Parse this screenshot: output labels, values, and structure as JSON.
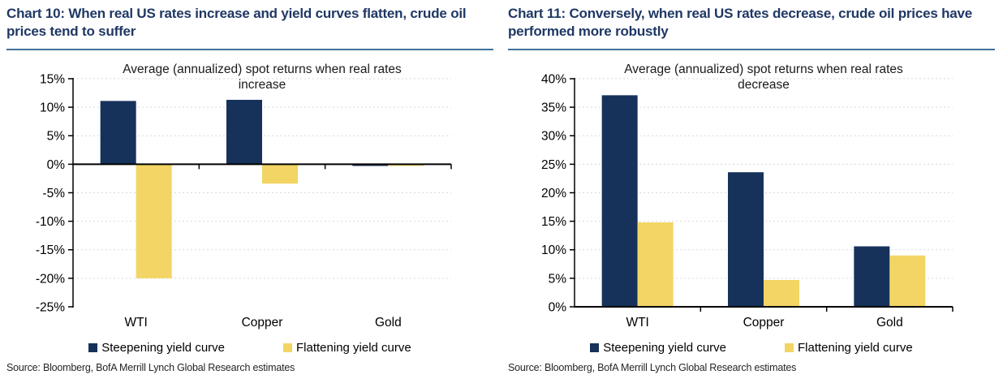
{
  "panels": [
    {
      "title": "Chart 10: When real US rates increase and yield curves flatten, crude oil prices tend to suffer",
      "source": "Source: Bloomberg, BofA Merrill Lynch Global Research estimates",
      "legend": [
        {
          "label": "Steepening yield curve",
          "color": "#16325B"
        },
        {
          "label": "Flattening yield curve",
          "color": "#F2D564"
        }
      ]
    },
    {
      "title": "Chart 11: Conversely, when real US rates decrease, crude oil prices have performed more robustly",
      "source": "Source: Bloomberg, BofA Merrill Lynch Global Research estimates",
      "legend": [
        {
          "label": "Steepening yield curve",
          "color": "#16325B"
        },
        {
          "label": "Flattening yield curve",
          "color": "#F2D564"
        }
      ]
    }
  ],
  "colors": {
    "steepening": "#16325B",
    "flattening": "#F2D564",
    "panel_title": "#1F3864",
    "title_underline": "#41719C",
    "gridline": "#D9D9D9",
    "axis": "#000000"
  },
  "chart_data": [
    {
      "type": "bar",
      "title": "Average (annualized) spot returns when real rates increase",
      "title_lines": [
        "Average (annualized) spot returns when real rates",
        "increase"
      ],
      "categories": [
        "WTI",
        "Copper",
        "Gold"
      ],
      "series": [
        {
          "name": "Steepening yield curve",
          "color": "#16325B",
          "values": [
            11.1,
            11.3,
            -0.3
          ]
        },
        {
          "name": "Flattening yield curve",
          "color": "#F2D564",
          "values": [
            -20.0,
            -3.4,
            -0.3
          ]
        }
      ],
      "xlabel": "",
      "ylabel": "",
      "ylim": [
        -25,
        15
      ],
      "ytick_step": 5,
      "ytick_format": "percent",
      "grid": true,
      "legend_position": "bottom"
    },
    {
      "type": "bar",
      "title": "Average (annualized) spot returns when real rates decrease",
      "title_lines": [
        "Average (annualized) spot returns when real rates",
        "decrease"
      ],
      "categories": [
        "WTI",
        "Copper",
        "Gold"
      ],
      "series": [
        {
          "name": "Steepening yield curve",
          "color": "#16325B",
          "values": [
            37.1,
            23.6,
            10.6
          ]
        },
        {
          "name": "Flattening yield curve",
          "color": "#F2D564",
          "values": [
            14.8,
            4.7,
            9.0
          ]
        }
      ],
      "xlabel": "",
      "ylabel": "",
      "ylim": [
        0,
        40
      ],
      "ytick_step": 5,
      "ytick_format": "percent",
      "grid": true,
      "legend_position": "bottom"
    }
  ]
}
